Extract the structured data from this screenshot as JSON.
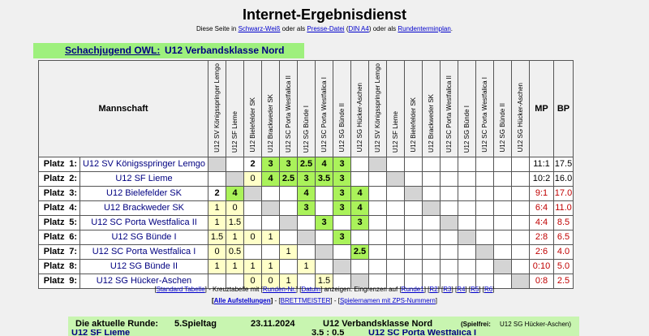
{
  "title": "Internet-Ergebnisdienst",
  "subtitle": {
    "t1": "Diese Seite in ",
    "l1": "Schwarz-Weiß",
    "t2": " oder als ",
    "l2": "Presse-Datei",
    "t3": " (",
    "l3": "DIN A4",
    "t4": ") oder als ",
    "l4": "Rundenterminplan",
    "t5": "."
  },
  "heading": {
    "org": "Schachjugend OWL:",
    "league": "U12 Verbandsklasse Nord"
  },
  "table": {
    "col_team": "Mannschaft",
    "col_mp": "MP",
    "col_bp": "BP",
    "columns": [
      "U12 SV Königsspringer Lemgo",
      "U12 SF Lieme",
      "U12 Bielefelder SK",
      "U12 Brackweder SK",
      "U12 SC Porta Westfalica II",
      "U12 SG Bünde I",
      "U12 SC Porta Westfalica I",
      "U12 SG Bünde II",
      "U12 SG Hücker-Aschen"
    ],
    "rows": [
      {
        "platz": "Platz",
        "rank": "1:",
        "team": "U12 SV Königsspringer Lemgo",
        "cells1": [
          "",
          "",
          "2",
          "3",
          "3",
          "2.5",
          "4",
          "3",
          ""
        ],
        "types1": [
          "diag",
          "cell",
          "cell",
          "win",
          "win",
          "win",
          "win",
          "win",
          "cell"
        ],
        "mp": "11:1",
        "bp": "17.5",
        "red": false
      },
      {
        "platz": "Platz",
        "rank": "2:",
        "team": "U12 SF Lieme",
        "cells1": [
          "",
          "",
          "0",
          "4",
          "2.5",
          "3",
          "3.5",
          "3",
          ""
        ],
        "types1": [
          "cell",
          "diag",
          "draw",
          "win",
          "win",
          "win",
          "win",
          "win",
          "cell"
        ],
        "mp": "10:2",
        "bp": "16.0",
        "red": false
      },
      {
        "platz": "Platz",
        "rank": "3:",
        "team": "U12 Bielefelder SK",
        "cells1": [
          "2",
          "4",
          "",
          "",
          "",
          "4",
          "",
          "3",
          "4"
        ],
        "types1": [
          "cell",
          "win",
          "diag",
          "cell",
          "cell",
          "win",
          "cell",
          "win",
          "win"
        ],
        "mp": "9:1",
        "bp": "17.0",
        "red": true
      },
      {
        "platz": "Platz",
        "rank": "4:",
        "team": "U12 Brackweder SK",
        "cells1": [
          "1",
          "0",
          "",
          "",
          "",
          "3",
          "",
          "3",
          "4"
        ],
        "types1": [
          "draw",
          "draw",
          "cell",
          "diag",
          "cell",
          "win",
          "cell",
          "win",
          "win"
        ],
        "mp": "6:4",
        "bp": "11.0",
        "red": true
      },
      {
        "platz": "Platz",
        "rank": "5:",
        "team": "U12 SC Porta Westfalica II",
        "cells1": [
          "1",
          "1.5",
          "",
          "",
          "",
          "",
          "3",
          "",
          "3"
        ],
        "types1": [
          "draw",
          "draw",
          "cell",
          "cell",
          "diag",
          "cell",
          "win",
          "cell",
          "win"
        ],
        "mp": "4:4",
        "bp": "8.5",
        "red": true
      },
      {
        "platz": "Platz",
        "rank": "6:",
        "team": "U12 SG Bünde I",
        "cells1": [
          "1.5",
          "1",
          "0",
          "1",
          "",
          "",
          "",
          "3",
          ""
        ],
        "types1": [
          "draw",
          "draw",
          "draw",
          "draw",
          "cell",
          "diag",
          "cell",
          "win",
          "cell"
        ],
        "mp": "2:8",
        "bp": "6.5",
        "red": true
      },
      {
        "platz": "Platz",
        "rank": "7:",
        "team": "U12 SC Porta Westfalica I",
        "cells1": [
          "0",
          "0.5",
          "",
          "",
          "1",
          "",
          "",
          "",
          "2.5"
        ],
        "types1": [
          "draw",
          "draw",
          "cell",
          "cell",
          "draw",
          "cell",
          "diag",
          "cell",
          "win"
        ],
        "mp": "2:6",
        "bp": "4.0",
        "red": true
      },
      {
        "platz": "Platz",
        "rank": "8:",
        "team": "U12 SG Bünde II",
        "cells1": [
          "1",
          "1",
          "1",
          "1",
          "",
          "1",
          "",
          "",
          ""
        ],
        "types1": [
          "draw",
          "draw",
          "draw",
          "draw",
          "cell",
          "draw",
          "cell",
          "diag",
          "cell"
        ],
        "mp": "0:10",
        "bp": "5.0",
        "red": true
      },
      {
        "platz": "Platz",
        "rank": "9:",
        "team": "U12 SG Hücker-Aschen",
        "cells1": [
          "",
          "",
          "0",
          "0",
          "1",
          "",
          "1.5",
          "",
          ""
        ],
        "types1": [
          "cell",
          "cell",
          "draw",
          "draw",
          "draw",
          "cell",
          "draw",
          "cell",
          "diag"
        ],
        "mp": "0:8",
        "bp": "2.5",
        "red": true
      }
    ],
    "second_diag": [
      0,
      1,
      2,
      3,
      4,
      5,
      6,
      7,
      8
    ]
  },
  "nav1": {
    "l1": "Standard Tabelle",
    "t1": " - Kreuztabelle mit ",
    "l2": "Runden-Nr.",
    "t2": " ",
    "l3": "Datum",
    "t3": " anzeigen. Eingrenzen auf ",
    "r1": "Runde1",
    "r2": "R2",
    "r3": "R3",
    "r4": "R4",
    "r5": "R5",
    "r6": "R6"
  },
  "nav2": {
    "l1": "Alle Aufstellungen",
    "t1": " - ",
    "l2": "BRETTMEISTER",
    "t2": " - ",
    "l3": "Spielernamen mit ZPS-Nummern"
  },
  "round": {
    "label": "Die aktuelle Runde:",
    "spieltag": "5.Spieltag",
    "date": "23.11.2024",
    "league": "U12 Verbandsklasse Nord",
    "spielfrei_label": "(Spielfrei:",
    "spielfrei_team": "U12 SG Hücker-Aschen)",
    "next_left": "U12 SF Lieme",
    "next_score": "3.5 : 0.5",
    "next_right": "U12 SC Porta Westfalica I"
  }
}
